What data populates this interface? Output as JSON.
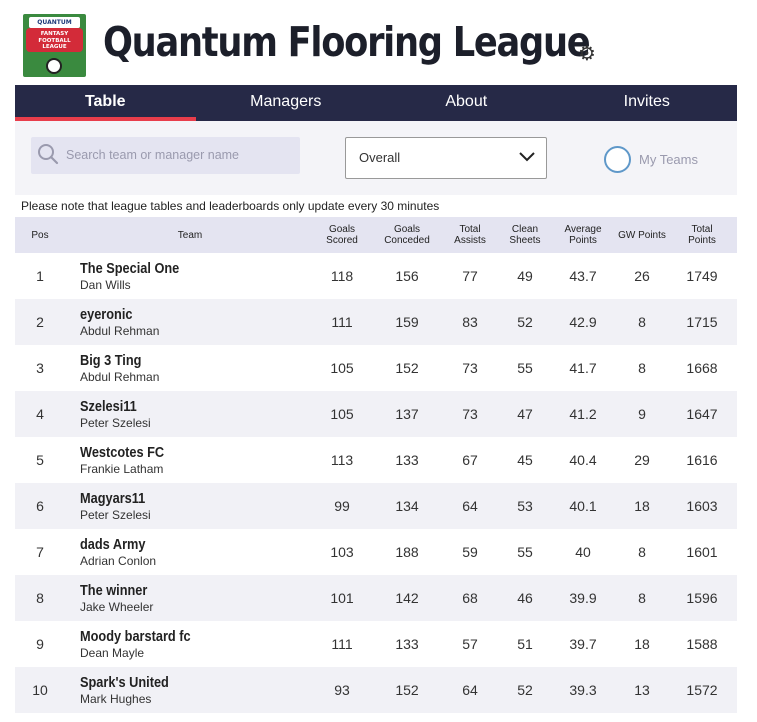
{
  "header": {
    "title": "Quantum Flooring League",
    "logo": {
      "brand": "QUANTUM",
      "text": "FANTASY FOOTBALL LEAGUE"
    }
  },
  "nav": {
    "tabs": [
      {
        "label": "Table",
        "active": true
      },
      {
        "label": "Managers",
        "active": false
      },
      {
        "label": "About",
        "active": false
      },
      {
        "label": "Invites",
        "active": false
      }
    ]
  },
  "filters": {
    "search_placeholder": "Search team or manager name",
    "select_value": "Overall",
    "my_teams_label": "My Teams"
  },
  "note": "Please note that league tables and leaderboards only update every 30 minutes",
  "table": {
    "headers": {
      "pos": "Pos",
      "team": "Team",
      "gs": "Goals Scored",
      "gc": "Goals Conceded",
      "ta": "Total Assists",
      "cs": "Clean Sheets",
      "ap": "Average Points",
      "gw": "GW Points",
      "tp": "Total Points"
    },
    "rows": [
      {
        "pos": "1",
        "team": "The Special One",
        "manager": "Dan Wills",
        "gs": "118",
        "gc": "156",
        "ta": "77",
        "cs": "49",
        "ap": "43.7",
        "gw": "26",
        "tp": "1749"
      },
      {
        "pos": "2",
        "team": "eyeronic",
        "manager": "Abdul Rehman",
        "gs": "111",
        "gc": "159",
        "ta": "83",
        "cs": "52",
        "ap": "42.9",
        "gw": "8",
        "tp": "1715"
      },
      {
        "pos": "3",
        "team": "Big 3 Ting",
        "manager": "Abdul Rehman",
        "gs": "105",
        "gc": "152",
        "ta": "73",
        "cs": "55",
        "ap": "41.7",
        "gw": "8",
        "tp": "1668"
      },
      {
        "pos": "4",
        "team": "Szelesi11",
        "manager": "Peter Szelesi",
        "gs": "105",
        "gc": "137",
        "ta": "73",
        "cs": "47",
        "ap": "41.2",
        "gw": "9",
        "tp": "1647"
      },
      {
        "pos": "5",
        "team": "Westcotes FC",
        "manager": "Frankie Latham",
        "gs": "113",
        "gc": "133",
        "ta": "67",
        "cs": "45",
        "ap": "40.4",
        "gw": "29",
        "tp": "1616"
      },
      {
        "pos": "6",
        "team": "Magyars11",
        "manager": "Peter Szelesi",
        "gs": "99",
        "gc": "134",
        "ta": "64",
        "cs": "53",
        "ap": "40.1",
        "gw": "18",
        "tp": "1603"
      },
      {
        "pos": "7",
        "team": "dads Army",
        "manager": "Adrian Conlon",
        "gs": "103",
        "gc": "188",
        "ta": "59",
        "cs": "55",
        "ap": "40",
        "gw": "8",
        "tp": "1601"
      },
      {
        "pos": "8",
        "team": "The winner",
        "manager": "Jake Wheeler",
        "gs": "101",
        "gc": "142",
        "ta": "68",
        "cs": "46",
        "ap": "39.9",
        "gw": "8",
        "tp": "1596"
      },
      {
        "pos": "9",
        "team": "Moody barstard fc",
        "manager": "Dean Mayle",
        "gs": "111",
        "gc": "133",
        "ta": "57",
        "cs": "51",
        "ap": "39.7",
        "gw": "18",
        "tp": "1588"
      },
      {
        "pos": "10",
        "team": "Spark's United",
        "manager": "Mark Hughes",
        "gs": "93",
        "gc": "152",
        "ta": "64",
        "cs": "52",
        "ap": "39.3",
        "gw": "13",
        "tp": "1572"
      }
    ]
  },
  "colors": {
    "nav_bg": "#262947",
    "active_underline": "#e83d4b",
    "header_row_bg": "#e4e4f1",
    "radio_ring": "#5f98c9"
  }
}
